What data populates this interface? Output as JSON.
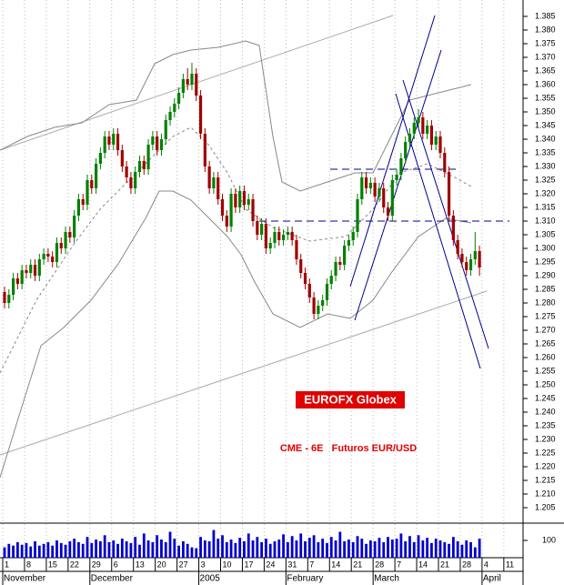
{
  "chart_data": {
    "type": "candlestick",
    "annotations": [
      "EUROFX Globex",
      "CME - 6E   Futuros EUR/USD"
    ],
    "categories": [
      "1",
      null,
      null,
      null,
      null,
      "8",
      null,
      null,
      null,
      null,
      "15",
      null,
      null,
      null,
      null,
      "22",
      null,
      null,
      null,
      null,
      "29",
      null,
      null,
      null,
      null,
      "6",
      null,
      null,
      null,
      null,
      "13",
      null,
      null,
      null,
      null,
      "20",
      null,
      null,
      null,
      null,
      "27",
      null,
      null,
      null,
      null,
      "3",
      null,
      null,
      null,
      null,
      "10",
      null,
      null,
      null,
      null,
      "17",
      null,
      null,
      null,
      null,
      "24",
      null,
      null,
      null,
      null,
      "31",
      null,
      null,
      null,
      null,
      "7",
      null,
      null,
      null,
      null,
      "14",
      null,
      null,
      null,
      null,
      "21",
      null,
      null,
      null,
      null,
      "28",
      null,
      null,
      null,
      null,
      "7",
      null,
      null,
      null,
      null,
      "14",
      null,
      null,
      null,
      null,
      "21",
      null,
      null,
      null,
      null,
      "28",
      null,
      null,
      null,
      null,
      "4",
      null,
      null,
      null,
      null,
      "11",
      null,
      null,
      null,
      null
    ],
    "month_labels": [
      "November",
      null,
      null,
      null,
      null,
      null,
      null,
      null,
      null,
      null,
      null,
      null,
      null,
      null,
      null,
      null,
      null,
      null,
      null,
      null,
      "December",
      null,
      null,
      null,
      null,
      null,
      null,
      null,
      null,
      null,
      null,
      null,
      null,
      null,
      null,
      null,
      null,
      null,
      null,
      null,
      null,
      null,
      null,
      null,
      null,
      "2005",
      null,
      null,
      null,
      null,
      null,
      null,
      null,
      null,
      null,
      null,
      null,
      null,
      null,
      null,
      null,
      null,
      null,
      null,
      null,
      "February",
      null,
      null,
      null,
      null,
      null,
      null,
      null,
      null,
      null,
      null,
      null,
      null,
      null,
      null,
      null,
      null,
      null,
      null,
      null,
      "March",
      null,
      null,
      null,
      null,
      null,
      null,
      null,
      null,
      null,
      null,
      null,
      null,
      null,
      null,
      null,
      null,
      null,
      null,
      null,
      null,
      null,
      null,
      null,
      null,
      "April",
      null,
      null,
      null,
      null,
      null,
      null,
      null,
      null,
      null
    ],
    "ohlc": [
      [
        1.284,
        1.286,
        1.278,
        1.28
      ],
      [
        1.28,
        1.285,
        1.278,
        1.283
      ],
      [
        1.283,
        1.291,
        1.281,
        1.289
      ],
      [
        1.289,
        1.291,
        1.285,
        1.287
      ],
      [
        1.287,
        1.294,
        1.285,
        1.292
      ],
      [
        1.292,
        1.294,
        1.289,
        1.291
      ],
      [
        1.291,
        1.296,
        1.289,
        1.294
      ],
      [
        1.294,
        1.296,
        1.288,
        1.29
      ],
      [
        1.29,
        1.298,
        1.288,
        1.296
      ],
      [
        1.296,
        1.3,
        1.294,
        1.298
      ],
      [
        1.298,
        1.3,
        1.295,
        1.297
      ],
      [
        1.297,
        1.299,
        1.293,
        1.295
      ],
      [
        1.295,
        1.304,
        1.293,
        1.302
      ],
      [
        1.302,
        1.304,
        1.298,
        1.3
      ],
      [
        1.3,
        1.308,
        1.298,
        1.306
      ],
      [
        1.306,
        1.308,
        1.302,
        1.304
      ],
      [
        1.304,
        1.314,
        1.302,
        1.312
      ],
      [
        1.312,
        1.32,
        1.31,
        1.318
      ],
      [
        1.318,
        1.32,
        1.314,
        1.316
      ],
      [
        1.316,
        1.327,
        1.314,
        1.325
      ],
      [
        1.325,
        1.327,
        1.32,
        1.322
      ],
      [
        1.322,
        1.333,
        1.32,
        1.331
      ],
      [
        1.331,
        1.337,
        1.329,
        1.335
      ],
      [
        1.335,
        1.343,
        1.333,
        1.341
      ],
      [
        1.341,
        1.343,
        1.336,
        1.338
      ],
      [
        1.338,
        1.344,
        1.336,
        1.342
      ],
      [
        1.342,
        1.344,
        1.334,
        1.336
      ],
      [
        1.336,
        1.338,
        1.328,
        1.33
      ],
      [
        1.33,
        1.332,
        1.324,
        1.326
      ],
      [
        1.326,
        1.328,
        1.32,
        1.322
      ],
      [
        1.322,
        1.33,
        1.32,
        1.328
      ],
      [
        1.328,
        1.334,
        1.326,
        1.332
      ],
      [
        1.332,
        1.334,
        1.327,
        1.329
      ],
      [
        1.329,
        1.34,
        1.327,
        1.338
      ],
      [
        1.338,
        1.343,
        1.336,
        1.341
      ],
      [
        1.341,
        1.343,
        1.334,
        1.336
      ],
      [
        1.336,
        1.342,
        1.334,
        1.34
      ],
      [
        1.34,
        1.349,
        1.338,
        1.347
      ],
      [
        1.347,
        1.352,
        1.345,
        1.35
      ],
      [
        1.35,
        1.355,
        1.348,
        1.353
      ],
      [
        1.353,
        1.359,
        1.351,
        1.357
      ],
      [
        1.357,
        1.364,
        1.355,
        1.362
      ],
      [
        1.362,
        1.366,
        1.358,
        1.36
      ],
      [
        1.36,
        1.368,
        1.358,
        1.364
      ],
      [
        1.364,
        1.366,
        1.354,
        1.356
      ],
      [
        1.356,
        1.358,
        1.34,
        1.342
      ],
      [
        1.342,
        1.344,
        1.328,
        1.33
      ],
      [
        1.33,
        1.332,
        1.32,
        1.322
      ],
      [
        1.322,
        1.328,
        1.32,
        1.326
      ],
      [
        1.326,
        1.328,
        1.316,
        1.318
      ],
      [
        1.318,
        1.32,
        1.31,
        1.312
      ],
      [
        1.312,
        1.314,
        1.306,
        1.308
      ],
      [
        1.308,
        1.322,
        1.306,
        1.32
      ],
      [
        1.32,
        1.322,
        1.313,
        1.315
      ],
      [
        1.315,
        1.323,
        1.313,
        1.321
      ],
      [
        1.321,
        1.323,
        1.314,
        1.316
      ],
      [
        1.316,
        1.32,
        1.314,
        1.318
      ],
      [
        1.318,
        1.32,
        1.308,
        1.31
      ],
      [
        1.31,
        1.312,
        1.303,
        1.305
      ],
      [
        1.305,
        1.311,
        1.303,
        1.309
      ],
      [
        1.309,
        1.311,
        1.298,
        1.3
      ],
      [
        1.3,
        1.304,
        1.298,
        1.302
      ],
      [
        1.302,
        1.308,
        1.3,
        1.306
      ],
      [
        1.306,
        1.308,
        1.301,
        1.303
      ],
      [
        1.303,
        1.307,
        1.301,
        1.305
      ],
      [
        1.305,
        1.308,
        1.303,
        1.306
      ],
      [
        1.306,
        1.308,
        1.301,
        1.303
      ],
      [
        1.303,
        1.305,
        1.294,
        1.296
      ],
      [
        1.296,
        1.298,
        1.289,
        1.291
      ],
      [
        1.291,
        1.293,
        1.285,
        1.287
      ],
      [
        1.287,
        1.289,
        1.28,
        1.282
      ],
      [
        1.282,
        1.284,
        1.274,
        1.276
      ],
      [
        1.276,
        1.281,
        1.274,
        1.279
      ],
      [
        1.279,
        1.283,
        1.277,
        1.281
      ],
      [
        1.281,
        1.289,
        1.279,
        1.287
      ],
      [
        1.287,
        1.292,
        1.285,
        1.29
      ],
      [
        1.29,
        1.297,
        1.288,
        1.295
      ],
      [
        1.295,
        1.297,
        1.292,
        1.294
      ],
      [
        1.294,
        1.303,
        1.292,
        1.301
      ],
      [
        1.301,
        1.305,
        1.299,
        1.303
      ],
      [
        1.303,
        1.308,
        1.301,
        1.306
      ],
      [
        1.306,
        1.32,
        1.304,
        1.318
      ],
      [
        1.318,
        1.328,
        1.316,
        1.326
      ],
      [
        1.326,
        1.328,
        1.32,
        1.322
      ],
      [
        1.322,
        1.326,
        1.32,
        1.324
      ],
      [
        1.324,
        1.326,
        1.317,
        1.319
      ],
      [
        1.319,
        1.324,
        1.317,
        1.322
      ],
      [
        1.322,
        1.324,
        1.313,
        1.315
      ],
      [
        1.315,
        1.317,
        1.31,
        1.312
      ],
      [
        1.312,
        1.327,
        1.31,
        1.325
      ],
      [
        1.325,
        1.329,
        1.323,
        1.327
      ],
      [
        1.327,
        1.335,
        1.325,
        1.333
      ],
      [
        1.333,
        1.341,
        1.331,
        1.339
      ],
      [
        1.339,
        1.344,
        1.337,
        1.342
      ],
      [
        1.342,
        1.348,
        1.34,
        1.346
      ],
      [
        1.346,
        1.351,
        1.344,
        1.348
      ],
      [
        1.348,
        1.35,
        1.34,
        1.342
      ],
      [
        1.342,
        1.347,
        1.34,
        1.345
      ],
      [
        1.345,
        1.347,
        1.336,
        1.338
      ],
      [
        1.338,
        1.343,
        1.336,
        1.341
      ],
      [
        1.341,
        1.343,
        1.333,
        1.335
      ],
      [
        1.335,
        1.337,
        1.326,
        1.328
      ],
      [
        1.328,
        1.33,
        1.31,
        1.312
      ],
      [
        1.312,
        1.314,
        1.301,
        1.303
      ],
      [
        1.303,
        1.305,
        1.296,
        1.298
      ],
      [
        1.298,
        1.3,
        1.293,
        1.295
      ],
      [
        1.295,
        1.297,
        1.29,
        1.292
      ],
      [
        1.292,
        1.298,
        1.29,
        1.296
      ],
      [
        1.296,
        1.306,
        1.294,
        1.299
      ],
      [
        1.299,
        1.301,
        1.29,
        1.293
      ],
      null,
      null,
      null,
      null,
      null,
      null,
      null,
      null,
      null,
      null
    ],
    "up_color": "#008000",
    "down_color": "#a00000",
    "volume": [
      60,
      80,
      70,
      90,
      75,
      85,
      65,
      95,
      70,
      80,
      90,
      70,
      100,
      85,
      75,
      95,
      110,
      90,
      80,
      120,
      85,
      105,
      95,
      130,
      90,
      100,
      80,
      110,
      95,
      85,
      120,
      75,
      140,
      100,
      90,
      130,
      105,
      90,
      150,
      110,
      70,
      95,
      80,
      60,
      55,
      120,
      100,
      95,
      160,
      110,
      130,
      90,
      105,
      85,
      115,
      95,
      140,
      100,
      120,
      90,
      110,
      80,
      95,
      105,
      135,
      90,
      125,
      100,
      140,
      95,
      115,
      130,
      90,
      110,
      85,
      120,
      100,
      150,
      95,
      105,
      90,
      125,
      110,
      80,
      100,
      95,
      115,
      90,
      120,
      105,
      110,
      140,
      95,
      125,
      90,
      130,
      100,
      115,
      85,
      110,
      100,
      90,
      80,
      120,
      95,
      75,
      100,
      90,
      60,
      110,
      null,
      null,
      null,
      null,
      null,
      null,
      null,
      null,
      null,
      null
    ],
    "volume_color": "#0000cc",
    "reference_lines": [
      1.329,
      1.31
    ],
    "ylim": [
      1.2,
      1.39
    ],
    "yticks": [
      1.205,
      {
        "value": 1.21,
        "label": "1.210"
      },
      1.215,
      {
        "value": 1.22,
        "label": "1.220"
      },
      1.225,
      {
        "value": 1.23,
        "label": "1.230"
      },
      1.235,
      {
        "value": 1.24,
        "label": "1.240"
      },
      1.245,
      {
        "value": 1.25,
        "label": "1.250"
      },
      1.255,
      {
        "value": 1.26,
        "label": "1.260"
      },
      1.265,
      {
        "value": 1.27,
        "label": "1.270"
      },
      1.275,
      {
        "value": 1.28,
        "label": "1.280"
      },
      1.285,
      {
        "value": 1.29,
        "label": "1.290"
      },
      1.295,
      {
        "value": 1.3,
        "label": "1.300"
      },
      1.305,
      {
        "value": 1.31,
        "label": "1.310"
      },
      1.315,
      {
        "value": 1.32,
        "label": "1.320"
      },
      1.325,
      {
        "value": 1.33,
        "label": "1.330"
      },
      1.335,
      {
        "value": 1.34,
        "label": "1.340"
      },
      1.345,
      {
        "value": 1.35,
        "label": "1.350"
      },
      1.355,
      {
        "value": 1.36,
        "label": "1.360"
      },
      1.365,
      {
        "value": 1.37,
        "label": "1.370"
      },
      1.375,
      {
        "value": 1.38,
        "label": "1.380"
      },
      1.385
    ],
    "y2lim": [
      0,
      200
    ],
    "y2ticks": [
      100
    ]
  }
}
